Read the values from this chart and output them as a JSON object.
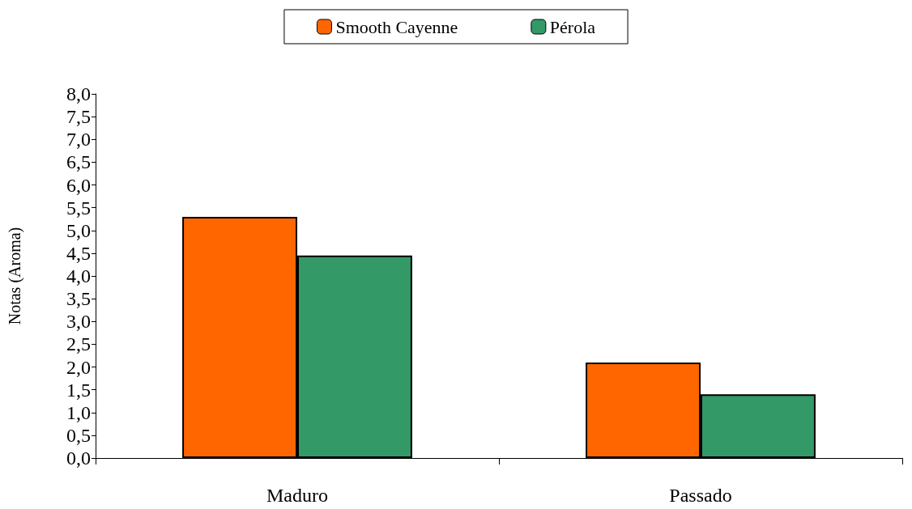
{
  "chart_data": {
    "type": "bar",
    "ylabel": "Notas (Aroma)",
    "categories": [
      "Maduro",
      "Passado"
    ],
    "series": [
      {
        "name": "Smooth Cayenne",
        "color": "#ff6600",
        "values": [
          5.3,
          2.1
        ]
      },
      {
        "name": "Pérola",
        "color": "#339966",
        "values": [
          4.45,
          1.4
        ]
      }
    ],
    "ylim": [
      0,
      8
    ],
    "yticks": [
      {
        "value": 0,
        "label": "0,0"
      },
      {
        "value": 0.5,
        "label": "0,5"
      },
      {
        "value": 1,
        "label": "1,0"
      },
      {
        "value": 1.5,
        "label": "1,5"
      },
      {
        "value": 2,
        "label": "2,0"
      },
      {
        "value": 2.5,
        "label": "2,5"
      },
      {
        "value": 3,
        "label": "3,0"
      },
      {
        "value": 3.5,
        "label": "3,5"
      },
      {
        "value": 4,
        "label": "4,0"
      },
      {
        "value": 4.5,
        "label": "4,5"
      },
      {
        "value": 5,
        "label": "5,0"
      },
      {
        "value": 5.5,
        "label": "5,5"
      },
      {
        "value": 6,
        "label": "6,0"
      },
      {
        "value": 6.5,
        "label": "6,5"
      },
      {
        "value": 7,
        "label": "7,0"
      },
      {
        "value": 7.5,
        "label": "7,5"
      },
      {
        "value": 8,
        "label": "8,0"
      }
    ],
    "grid": false,
    "legend": "top"
  }
}
